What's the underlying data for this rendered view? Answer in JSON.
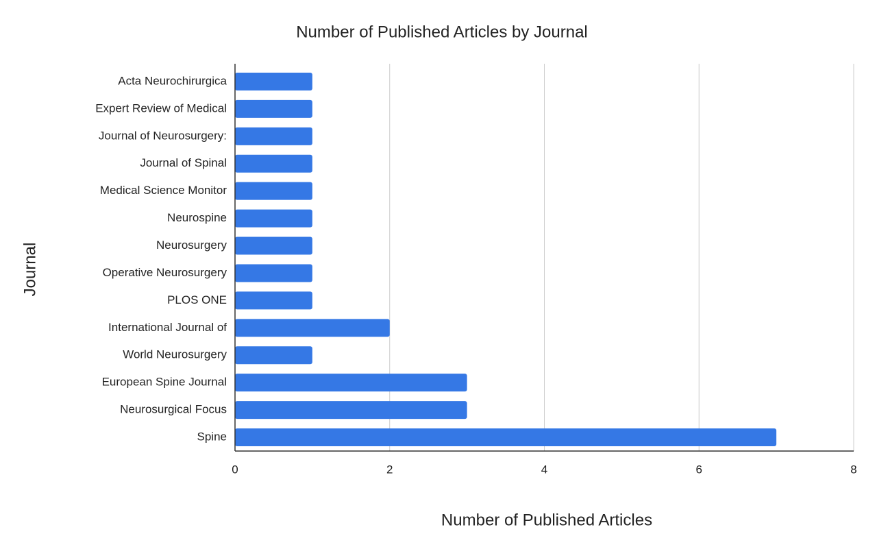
{
  "chart_data": {
    "type": "bar",
    "orientation": "horizontal",
    "title": "Number of Published Articles by Journal",
    "x_label": "Number of Published Articles",
    "y_label": "Journal",
    "categories": [
      "Acta Neurochirurgica",
      "Expert Review of Medical",
      "Journal of Neurosurgery:",
      "Journal of Spinal",
      "Medical Science Monitor",
      "Neurospine",
      "Neurosurgery",
      "Operative Neurosurgery",
      "PLOS ONE",
      "International Journal of",
      "World Neurosurgery",
      "European Spine Journal",
      "Neurosurgical Focus",
      "Spine"
    ],
    "values": [
      1,
      1,
      1,
      1,
      1,
      1,
      1,
      1,
      1,
      2,
      1,
      3,
      3,
      7
    ],
    "color": "#3578e5",
    "xlim": [
      0,
      8
    ],
    "xticks": [
      0,
      2,
      4,
      6,
      8
    ],
    "grid": true
  }
}
